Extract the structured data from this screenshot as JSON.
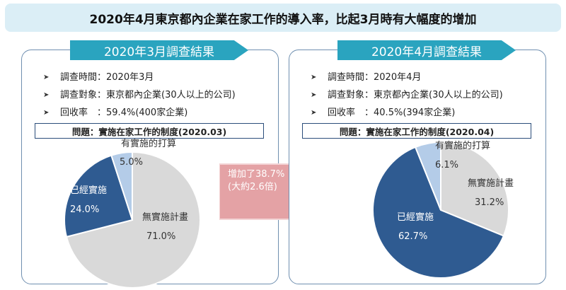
{
  "title": "2020年4月東京都內企業在家工作的導入率，比起3月時有大幅度的增加",
  "arrow": {
    "line1": "增加了38.7%",
    "line2": "(大約2.6倍)"
  },
  "colors": {
    "none": "#d9d9d9",
    "already": "#2f5b91",
    "planning": "#b4cce8",
    "banner": "#2aa4bf",
    "arrow": "#e4a2a5"
  },
  "panels": [
    {
      "banner": "2020年3月調查結果",
      "info": [
        {
          "label": "調查時間：",
          "value": "2020年3月"
        },
        {
          "label": "調查對象：",
          "value": "東京都內企業(30人以上的公司)"
        },
        {
          "label": "回收率　：",
          "value": "59.4%(400家企業)"
        }
      ],
      "question": "問題：實施在家工作的制度(2020.03)"
    },
    {
      "banner": "2020年4月調查結果",
      "info": [
        {
          "label": "調查時間：",
          "value": "2020年4月"
        },
        {
          "label": "調查對象：",
          "value": "東京都內企業(30人以上的公司)"
        },
        {
          "label": "回收率　：",
          "value": "40.5%(394家企業)"
        }
      ],
      "question": "問題：實施在家工作的制度(2020.04)"
    }
  ],
  "chart_data": [
    {
      "type": "pie",
      "title": "問題：實施在家工作的制度(2020.03)",
      "slices": [
        {
          "label": "無實施計畫",
          "value": 71.0,
          "value_label": "71.0%",
          "color": "#d9d9d9"
        },
        {
          "label": "已經實施",
          "value": 24.0,
          "value_label": "24.0%",
          "color": "#2f5b91"
        },
        {
          "label": "有實施的打算",
          "value": 5.0,
          "value_label": "5.0%",
          "color": "#b4cce8"
        }
      ]
    },
    {
      "type": "pie",
      "title": "問題：實施在家工作的制度(2020.04)",
      "slices": [
        {
          "label": "無實施計畫",
          "value": 31.2,
          "value_label": "31.2%",
          "color": "#d9d9d9"
        },
        {
          "label": "已經實施",
          "value": 62.7,
          "value_label": "62.7%",
          "color": "#2f5b91"
        },
        {
          "label": "有實施的打算",
          "value": 6.1,
          "value_label": "6.1%",
          "color": "#b4cce8"
        }
      ]
    }
  ]
}
